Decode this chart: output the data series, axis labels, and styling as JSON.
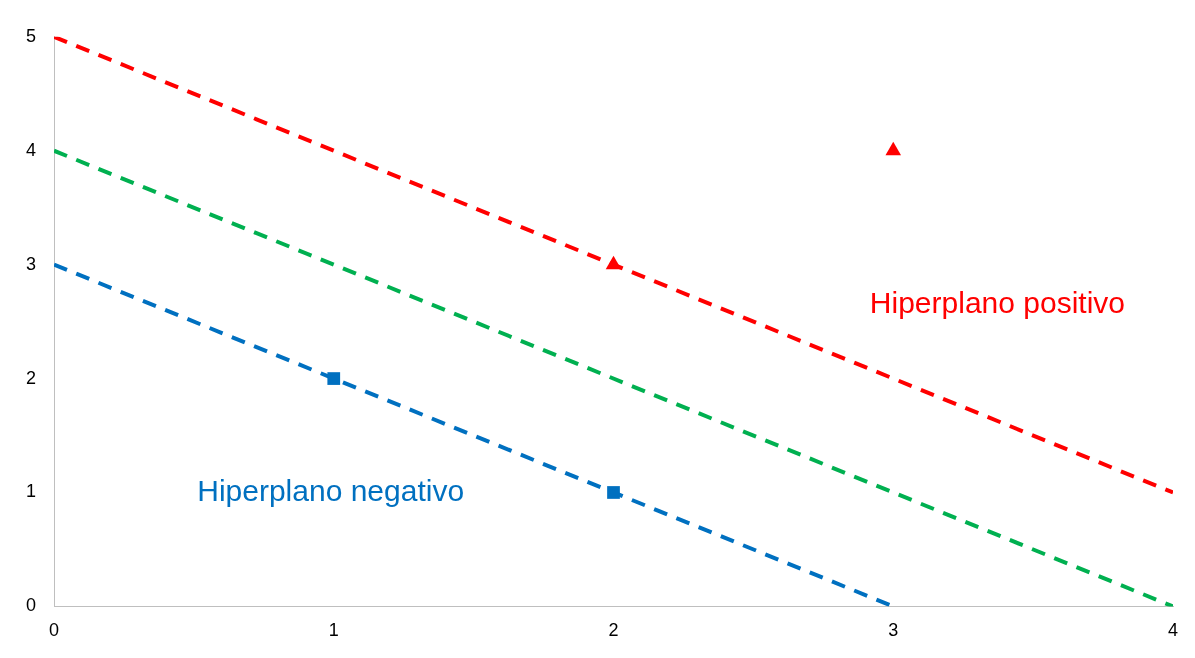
{
  "chart_data": {
    "type": "line",
    "xlim": [
      0,
      4
    ],
    "xticks": [
      0,
      1,
      2,
      3,
      4
    ],
    "ylim": [
      0,
      5
    ],
    "yticks": [
      0,
      1,
      2,
      3,
      4,
      5
    ],
    "grid": false,
    "legend": false,
    "series": [
      {
        "color": "#ff0000",
        "x": [
          0,
          4
        ],
        "values": [
          5,
          1
        ],
        "line_style": "dashed",
        "marker": "none"
      },
      {
        "color": "#0070c0",
        "x": [
          0,
          3
        ],
        "values": [
          3,
          0
        ],
        "line_style": "dashed",
        "marker": "none"
      },
      {
        "color": "#00b050",
        "x": [
          0,
          4
        ],
        "values": [
          4,
          0
        ],
        "line_style": "dashed",
        "marker": "none"
      },
      {
        "type": "scatter",
        "color": "#ff0000",
        "x": [
          2,
          3
        ],
        "values": [
          3,
          4
        ],
        "marker": "triangle"
      },
      {
        "type": "scatter",
        "color": "#0070c0",
        "x": [
          1,
          2
        ],
        "values": [
          2,
          1
        ],
        "marker": "square"
      }
    ],
    "annotations": [
      "Hiperplano positivo",
      "Hiperplano negativo"
    ]
  }
}
